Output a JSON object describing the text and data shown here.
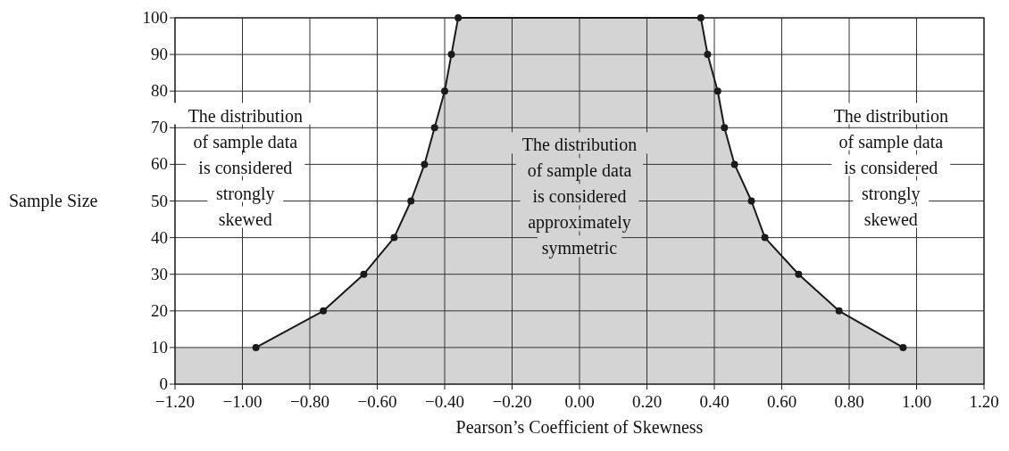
{
  "chart_data": {
    "type": "area",
    "xlabel": "Pearson’s Coefficient of Skewness",
    "ylabel": "Sample Size",
    "series": [
      {
        "color": "#d4d4d4",
        "x": [
          -0.96,
          -0.76,
          -0.64,
          -0.55,
          -0.5,
          -0.46,
          -0.43,
          -0.4,
          -0.38,
          -0.36,
          0.36,
          0.38,
          0.41,
          0.43,
          0.46,
          0.51,
          0.55,
          0.65,
          0.77,
          0.96
        ],
        "values": [
          10,
          20,
          30,
          40,
          50,
          60,
          70,
          80,
          90,
          100,
          100,
          90,
          80,
          70,
          60,
          50,
          40,
          30,
          20,
          10
        ]
      }
    ],
    "bands": [
      {
        "axis": "y",
        "from": 0,
        "to": 10,
        "color": "#d4d4d4"
      }
    ],
    "annotations": [
      "The distribution\nof sample data\nis considered\nstrongly\nskewed",
      "The distribution\nof sample data\nis considered\napproximately\nsymmetric",
      "The distribution\nof sample data\nis considered\nstrongly\nskewed"
    ],
    "xlim": [
      -1.2,
      1.2
    ],
    "xticks": [
      {
        "value": -1.2,
        "label": "−1.20"
      },
      {
        "value": -1,
        "label": "−1.00"
      },
      {
        "value": -0.8,
        "label": "−0.80"
      },
      {
        "value": -0.6,
        "label": "−0.60"
      },
      {
        "value": -0.4,
        "label": "−0.40"
      },
      {
        "value": -0.2,
        "label": "−0.20"
      },
      {
        "value": 0,
        "label": "0.00"
      },
      {
        "value": 0.2,
        "label": "0.20"
      },
      {
        "value": 0.4,
        "label": "0.40"
      },
      {
        "value": 0.6,
        "label": "0.60"
      },
      {
        "value": 0.8,
        "label": "0.80"
      },
      {
        "value": 1,
        "label": "1.00"
      },
      {
        "value": 1.2,
        "label": "1.20"
      }
    ],
    "ylim": [
      0,
      100
    ],
    "yticks": [
      0,
      10,
      20,
      30,
      40,
      50,
      60,
      70,
      80,
      90,
      100
    ],
    "grid": true,
    "marker": "circle",
    "line_style": "solid"
  }
}
